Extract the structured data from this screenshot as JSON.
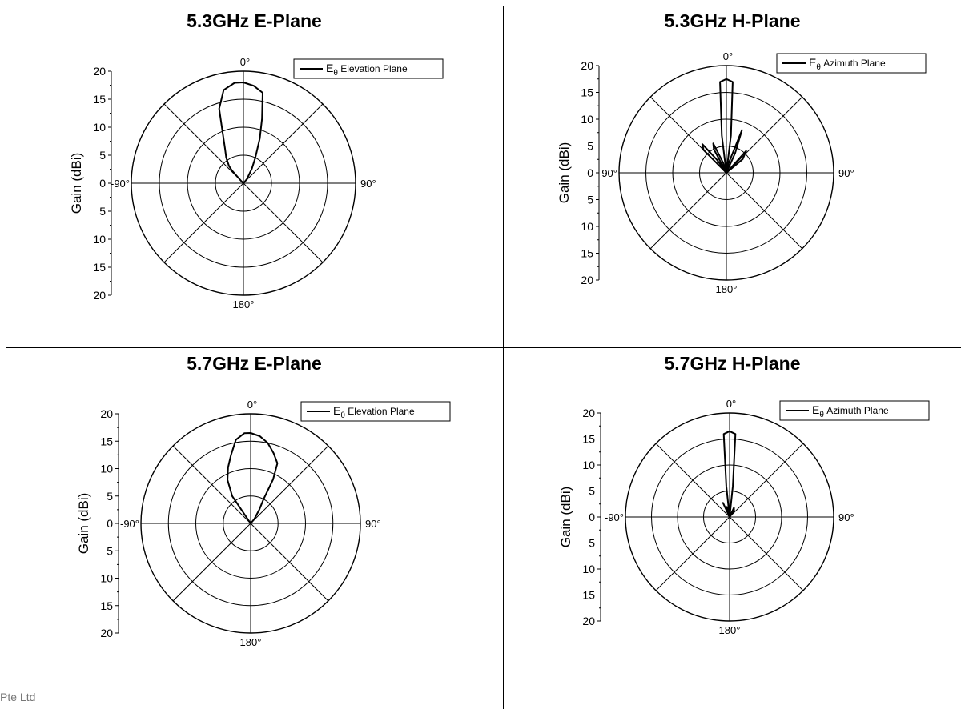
{
  "footer": {
    "text": "Pte Ltd"
  },
  "chart_data": [
    {
      "type": "polar-line",
      "title": "5.3GHz E-Plane",
      "ylabel": "Gain (dBi)",
      "radial_ticks": [
        0,
        5,
        10,
        15,
        20
      ],
      "radial_tick_labels": [
        "20",
        "15",
        "10",
        "5",
        "0",
        "5",
        "10",
        "15",
        "20"
      ],
      "angle_labels": {
        "top": "0°",
        "bottom": "180°",
        "left": "-90°",
        "right": "90°"
      },
      "rlim": [
        0,
        20
      ],
      "grid": true,
      "legend": {
        "position": "top-right"
      },
      "series": [
        {
          "name": "E_θ Elevation Plane",
          "legend_main": "E",
          "legend_sub": "θ",
          "legend_rest": " Elevation Plane",
          "points": [
            [
              -40,
              4
            ],
            [
              -34,
              5.5
            ],
            [
              -28,
              7
            ],
            [
              -22,
              10
            ],
            [
              -18,
              14
            ],
            [
              -12,
              17
            ],
            [
              -5,
              18
            ],
            [
              0,
              18
            ],
            [
              6,
              17.5
            ],
            [
              12,
              16.5
            ],
            [
              16,
              12
            ],
            [
              20,
              8.5
            ],
            [
              25,
              5
            ],
            [
              30,
              3
            ],
            [
              40,
              1
            ],
            [
              90,
              0
            ],
            [
              180,
              0
            ],
            [
              270,
              0
            ],
            [
              315,
              0.5
            ],
            [
              318,
              3
            ]
          ]
        }
      ]
    },
    {
      "type": "polar-line",
      "title": "5.3GHz H-Plane",
      "ylabel": "Gain (dBi)",
      "radial_ticks": [
        0,
        5,
        10,
        15,
        20
      ],
      "radial_tick_labels": [
        "20",
        "15",
        "10",
        "5",
        "0",
        "5",
        "10",
        "15",
        "20"
      ],
      "angle_labels": {
        "top": "0°",
        "bottom": "180°",
        "left": "-90°",
        "right": "90°"
      },
      "rlim": [
        0,
        20
      ],
      "grid": true,
      "legend": {
        "position": "top-right"
      },
      "series": [
        {
          "name": "E_θ Azimuth Plane",
          "legend_main": "E",
          "legend_sub": "θ",
          "legend_rest": " Azimuth Plane",
          "points": [
            [
              -55,
              0
            ],
            [
              -45,
              6
            ],
            [
              -40,
              7
            ],
            [
              -36,
              3
            ],
            [
              -30,
              0
            ],
            [
              -28,
              5
            ],
            [
              -24,
              6
            ],
            [
              -18,
              2
            ],
            [
              -10,
              0
            ],
            [
              -7,
              7
            ],
            [
              -4,
              17
            ],
            [
              0,
              17.5
            ],
            [
              4,
              17
            ],
            [
              7,
              7
            ],
            [
              10,
              0
            ],
            [
              14,
              2
            ],
            [
              20,
              8.5
            ],
            [
              24,
              4
            ],
            [
              30,
              0
            ],
            [
              42,
              5.5
            ],
            [
              50,
              4
            ],
            [
              60,
              0
            ]
          ]
        }
      ]
    },
    {
      "type": "polar-line",
      "title": "5.7GHz E-Plane",
      "ylabel": "Gain (dBi)",
      "radial_ticks": [
        0,
        5,
        10,
        15,
        20
      ],
      "radial_tick_labels": [
        "20",
        "15",
        "10",
        "5",
        "0",
        "5",
        "10",
        "15",
        "20"
      ],
      "angle_labels": {
        "top": "0°",
        "bottom": "180°",
        "left": "-90°",
        "right": "90°"
      },
      "rlim": [
        0,
        20
      ],
      "grid": true,
      "legend": {
        "position": "top-right"
      },
      "series": [
        {
          "name": "E_θ Elevation Plane",
          "legend_main": "E",
          "legend_sub": "θ",
          "legend_rest": " Elevation Plane",
          "points": [
            [
              -40,
              0
            ],
            [
              -34,
              6
            ],
            [
              -28,
              9
            ],
            [
              -22,
              11
            ],
            [
              -16,
              13
            ],
            [
              -10,
              15.5
            ],
            [
              -4,
              16.5
            ],
            [
              0,
              16.5
            ],
            [
              6,
              16
            ],
            [
              12,
              15
            ],
            [
              18,
              13.5
            ],
            [
              24,
              12
            ],
            [
              27,
              9
            ],
            [
              28,
              5
            ],
            [
              32,
              3
            ],
            [
              40,
              1
            ],
            [
              50,
              0
            ]
          ]
        }
      ]
    },
    {
      "type": "polar-line",
      "title": "5.7GHz H-Plane",
      "ylabel": "Gain (dBi)",
      "radial_ticks": [
        0,
        5,
        10,
        15,
        20
      ],
      "radial_tick_labels": [
        "20",
        "15",
        "10",
        "5",
        "0",
        "5",
        "10",
        "15",
        "20"
      ],
      "angle_labels": {
        "top": "0°",
        "bottom": "180°",
        "left": "-90°",
        "right": "90°"
      },
      "rlim": [
        0,
        20
      ],
      "grid": true,
      "legend": {
        "position": "top-right"
      },
      "series": [
        {
          "name": "E_θ Azimuth Plane",
          "legend_main": "E",
          "legend_sub": "θ",
          "legend_rest": " Azimuth Plane",
          "points": [
            [
              -30,
              0
            ],
            [
              -25,
              3
            ],
            [
              -20,
              0
            ],
            [
              -15,
              2
            ],
            [
              -10,
              0
            ],
            [
              -6,
              6
            ],
            [
              -4,
              16
            ],
            [
              0,
              16.5
            ],
            [
              4,
              16
            ],
            [
              6,
              6
            ],
            [
              10,
              0
            ],
            [
              25,
              2
            ],
            [
              35,
              1.5
            ],
            [
              45,
              0
            ]
          ]
        }
      ]
    }
  ]
}
